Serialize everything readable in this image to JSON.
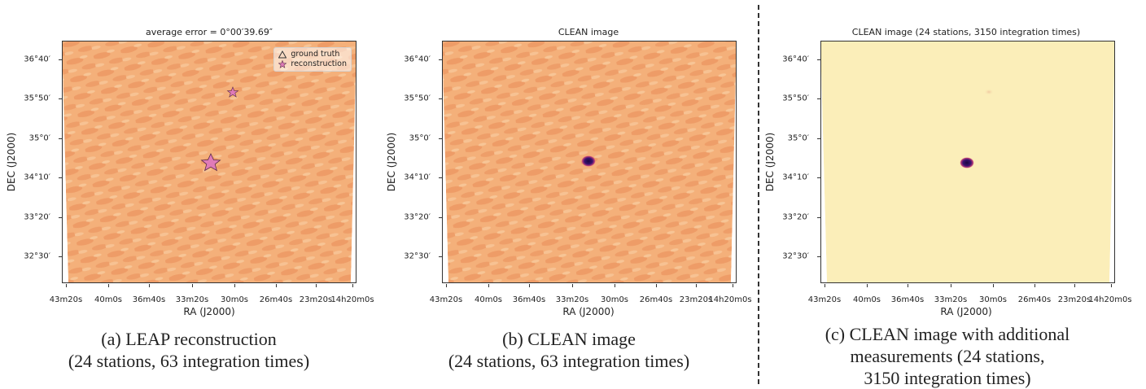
{
  "chart_data": [
    {
      "type": "heatmap",
      "panel": "a",
      "title": "average error = 0°00′39.69″",
      "xlabel": "RA (J2000)",
      "ylabel": "DEC (J2000)",
      "xticks": [
        "43m20s",
        "40m0s",
        "36m40s",
        "33m20s",
        "30m0s",
        "26m40s",
        "23m20s",
        "14h20m0s"
      ],
      "yticks": [
        "36°40′",
        "35°50′",
        "35°0′",
        "34°10′",
        "33°20′",
        "32°30′"
      ],
      "legend": {
        "position": "top-right",
        "entries": [
          {
            "label": "ground truth",
            "marker": "triangle"
          },
          {
            "label": "reconstruction",
            "marker": "star"
          }
        ]
      },
      "sources": [
        {
          "ra": "14h31m30s",
          "dec": "34°25′",
          "flux": "bright",
          "marker": "star-large"
        },
        {
          "ra": "14h30m05s",
          "dec": "35°52′",
          "flux": "faint",
          "marker": "star-small"
        }
      ],
      "colormap": "orange",
      "caption": [
        "(a) LEAP reconstruction",
        "(24 stations, 63 integration times)"
      ]
    },
    {
      "type": "heatmap",
      "panel": "b",
      "title": "CLEAN image",
      "xlabel": "RA (J2000)",
      "ylabel": "DEC (J2000)",
      "xticks": [
        "43m20s",
        "40m0s",
        "36m40s",
        "33m20s",
        "30m0s",
        "26m40s",
        "23m20s",
        "14h20m0s"
      ],
      "yticks": [
        "36°40′",
        "35°50′",
        "35°0′",
        "34°10′",
        "33°20′",
        "32°30′"
      ],
      "sources": [
        {
          "ra": "14h31m30s",
          "dec": "34°25′",
          "flux": "bright"
        }
      ],
      "colormap": "orange",
      "caption": [
        "(b) CLEAN image",
        "(24 stations, 63 integration times)"
      ]
    },
    {
      "type": "heatmap",
      "panel": "c",
      "title": "CLEAN image (24 stations, 3150 integration times)",
      "xlabel": "RA (J2000)",
      "ylabel": "DEC (J2000)",
      "xticks": [
        "43m20s",
        "40m0s",
        "36m40s",
        "33m20s",
        "30m0s",
        "26m40s",
        "23m20s",
        "14h20m0s"
      ],
      "yticks": [
        "36°40′",
        "35°50′",
        "35°0′",
        "34°10′",
        "33°20′",
        "32°30′"
      ],
      "sources": [
        {
          "ra": "14h31m30s",
          "dec": "34°25′",
          "flux": "bright"
        },
        {
          "ra": "14h30m05s",
          "dec": "35°52′",
          "flux": "faint"
        }
      ],
      "colormap": "pale-yellow",
      "caption": [
        "(c) CLEAN image with additional",
        "measurements (24 stations,",
        "3150 integration times)"
      ]
    }
  ],
  "colors": {
    "orange_base": "#f4b07a",
    "orange_ripple": "#ec9560",
    "yellow_base": "#fbeeb9",
    "source_core": "#2a0a55",
    "star_fill": "#e07bb8"
  }
}
